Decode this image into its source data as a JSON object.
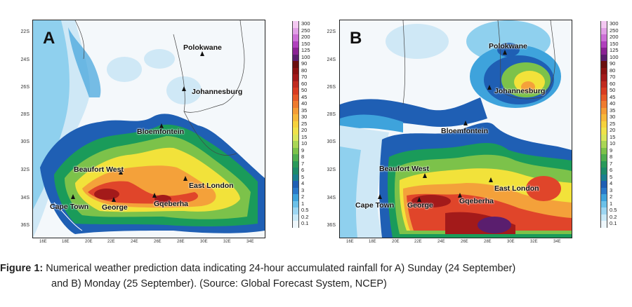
{
  "colors": {
    "c0": "#f4f8fb",
    "c1": "#cfe8f6",
    "c2": "#8fd0ee",
    "c3": "#3ea3dc",
    "c4": "#1f5fb4",
    "c5": "#1a9b5a",
    "c6": "#7cc24a",
    "c7": "#f2e23a",
    "c8": "#f4a13a",
    "c9": "#e0452a",
    "c10": "#a31a1a",
    "c11": "#5a1e6e"
  },
  "colorbar": {
    "labels": [
      "300",
      "250",
      "200",
      "150",
      "125",
      "100",
      "90",
      "80",
      "70",
      "60",
      "50",
      "45",
      "40",
      "35",
      "30",
      "25",
      "20",
      "15",
      "10",
      "9",
      "8",
      "7",
      "6",
      "5",
      "4",
      "3",
      "2",
      "1",
      "0.5",
      "0.2",
      "0.1"
    ],
    "colors": [
      "#f3c8f1",
      "#e19fe6",
      "#cc6fd6",
      "#b040bd",
      "#8a2293",
      "#5a1e6e",
      "#6a0e0e",
      "#8b1212",
      "#a31a1a",
      "#c02a1f",
      "#d83c22",
      "#e65a28",
      "#ef7b2e",
      "#f49c35",
      "#f6b83a",
      "#f6d23c",
      "#efe24a",
      "#d9e65a",
      "#a9d655",
      "#7cc24a",
      "#4fae4f",
      "#2a9a5a",
      "#1d8b6a",
      "#1a7f8f",
      "#1f5fb4",
      "#2a78c9",
      "#3ea3dc",
      "#6cc1e9",
      "#9dd6f2",
      "#c9e9f8",
      "#eef7fc"
    ]
  },
  "y_labels": [
    "22S",
    "24S",
    "26S",
    "28S",
    "30S",
    "32S",
    "34S",
    "36S"
  ],
  "x_labels": [
    "16E",
    "18E",
    "20E",
    "22E",
    "24E",
    "26E",
    "28E",
    "30E",
    "32E",
    "34E"
  ],
  "panels": [
    {
      "letter": "A",
      "cities": [
        {
          "name": "Polokwane"
        },
        {
          "name": "Johannesburg"
        },
        {
          "name": "Bloemfontein"
        },
        {
          "name": "Beaufort West"
        },
        {
          "name": "East London"
        },
        {
          "name": "Cape Town"
        },
        {
          "name": "George"
        },
        {
          "name": "Gqeberha"
        }
      ]
    },
    {
      "letter": "B",
      "cities": [
        {
          "name": "Polokwane"
        },
        {
          "name": "Johannesburg"
        },
        {
          "name": "Bloemfontein"
        },
        {
          "name": "Beaufort West"
        },
        {
          "name": "East London"
        },
        {
          "name": "Cape Town"
        },
        {
          "name": "George"
        },
        {
          "name": "Gqeberha"
        }
      ]
    }
  ],
  "caption": {
    "label": "Figure 1:",
    "line1": " Numerical weather prediction data indicating 24-hour accumulated rainfall for A) Sunday (24 September)",
    "line2": "and B) Monday (25 September). (Source: Global Forecast System, NCEP)"
  }
}
